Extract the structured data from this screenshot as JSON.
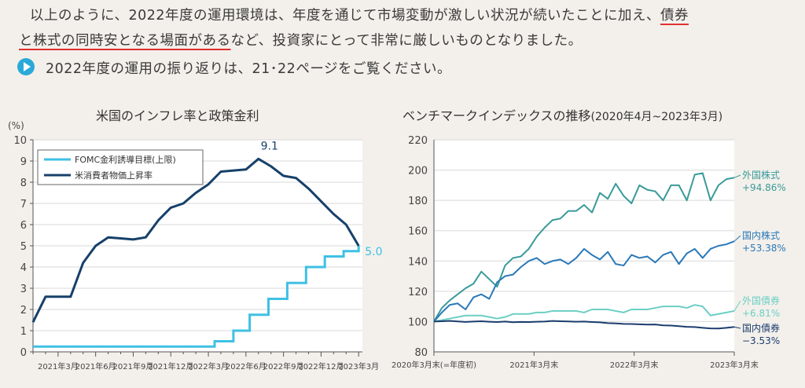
{
  "text": {
    "line1_a": "以上のように、2022年度の運用環境は、年度を通じて市場変動が激しい状況が続いたことに加え、",
    "line1_b": "債券",
    "line2_a": "と株式の同時安となる場面がある",
    "line2_b": "など、投資家にとって非常に厳しいものとなりました。",
    "note": "2022年度の運用の振り返りは、21･22ページをご覧ください。"
  },
  "colors": {
    "ffr": "#3fc0e4",
    "cpi": "#17406a",
    "foreign_stock": "#3a9a9a",
    "domestic_stock": "#2a78b8",
    "foreign_bond": "#6ccfc4",
    "domestic_bond": "#1c3d6e",
    "accent_red": "#e03030"
  },
  "chart_data": [
    {
      "type": "line",
      "title": "米国のインフレ率と政策金利",
      "ylabel": "(%)",
      "ylim": [
        0,
        10
      ],
      "yticks": [
        "0",
        "1",
        "2",
        "3",
        "4",
        "5",
        "6",
        "7",
        "8",
        "9",
        "10"
      ],
      "xticks": [
        {
          "label": "2021年3月",
          "x": 2.0
        },
        {
          "label": "2021年6月",
          "x": 5.0
        },
        {
          "label": "2021年9月",
          "x": 8.0
        },
        {
          "label": "2021年12月",
          "x": 11.0
        },
        {
          "label": "2022年3月",
          "x": 14.0
        },
        {
          "label": "2022年6月",
          "x": 17.0
        },
        {
          "label": "2022年9月",
          "x": 20.0
        },
        {
          "label": "2022年12月",
          "x": 23.0
        },
        {
          "label": "2023年3月",
          "x": 26.0
        }
      ],
      "xlim": [
        0,
        26.3
      ],
      "legend": [
        "FOMC金利誘導目標(上限)",
        "米消費者物価上昇率"
      ],
      "annotations": [
        {
          "text": "9.1"
        },
        {
          "text": "5.0"
        }
      ],
      "series": [
        {
          "name": "FOMC金利誘導目標(上限)",
          "step": true,
          "x": [
            0,
            14.5,
            14.5,
            16.0,
            16.0,
            17.3,
            17.3,
            18.8,
            18.8,
            20.3,
            20.3,
            21.8,
            21.8,
            23.3,
            23.3,
            24.8,
            24.8,
            26.0,
            26.0
          ],
          "y": [
            0.25,
            0.25,
            0.5,
            0.5,
            1.0,
            1.0,
            1.75,
            1.75,
            2.5,
            2.5,
            3.25,
            3.25,
            4.0,
            4.0,
            4.5,
            4.5,
            4.75,
            4.75,
            5.0
          ]
        },
        {
          "name": "米消費者物価上昇率",
          "step": false,
          "x": [
            0,
            1,
            2,
            3,
            4,
            5,
            6,
            7,
            8,
            9,
            10,
            11,
            12,
            13,
            14,
            15,
            16,
            17,
            18,
            19,
            20,
            21,
            22,
            23,
            24,
            25,
            26
          ],
          "y": [
            1.4,
            2.6,
            2.6,
            2.6,
            4.2,
            5.0,
            5.4,
            5.35,
            5.3,
            5.4,
            6.2,
            6.8,
            7.0,
            7.5,
            7.9,
            8.5,
            8.55,
            8.6,
            9.1,
            8.75,
            8.3,
            8.2,
            7.7,
            7.1,
            6.5,
            6.0,
            5.0
          ]
        }
      ]
    },
    {
      "type": "line",
      "title": "ベンチマークインデックスの推移",
      "subtitle": "(2020年4月~2023年3月)",
      "ylim": [
        80,
        220
      ],
      "yticks": [
        "80",
        "100",
        "120",
        "140",
        "160",
        "180",
        "200",
        "220"
      ],
      "xlim": [
        0,
        36
      ],
      "xticks": [
        {
          "label": "2020年3月末(=年度初)",
          "x": 0
        },
        {
          "label": "2021年3月末",
          "x": 12
        },
        {
          "label": "2022年3月末",
          "x": 24
        },
        {
          "label": "2023年3月末",
          "x": 36
        }
      ],
      "series": [
        {
          "name": "外国株式",
          "label_line1": "外国株式",
          "label_line2": "+94.86%",
          "values": [
            100,
            109,
            114,
            118,
            122,
            125,
            133,
            128,
            123,
            137,
            142,
            143,
            148,
            156,
            162,
            167,
            168,
            173,
            173,
            177,
            172,
            185,
            181,
            191,
            183,
            178,
            190,
            187,
            186,
            180,
            190,
            190,
            180,
            197,
            198,
            180,
            190,
            194,
            195
          ]
        },
        {
          "name": "国内株式",
          "label_line1": "国内株式",
          "label_line2": "+53.38%",
          "values": [
            100,
            106,
            111,
            112,
            108,
            116,
            118,
            115,
            126,
            130,
            131,
            136,
            140,
            142,
            138,
            140,
            141,
            138,
            142,
            148,
            144,
            141,
            146,
            138,
            137,
            144,
            142,
            143,
            139,
            144,
            146,
            138,
            145,
            148,
            142,
            148,
            150,
            151,
            153
          ]
        },
        {
          "name": "外国債券",
          "label_line1": "外国債券",
          "label_line2": "+6.81%",
          "values": [
            100,
            101,
            102,
            103,
            104,
            104,
            104,
            103,
            102,
            103,
            105,
            105,
            105,
            106,
            106,
            107,
            107,
            107,
            107,
            106,
            108,
            108,
            108,
            107,
            106,
            108,
            108,
            108,
            109,
            110,
            110,
            110,
            109,
            111,
            110,
            104,
            105,
            106,
            107
          ]
        },
        {
          "name": "国内債券",
          "label_line1": "国内債券",
          "label_line2": "−3.53%",
          "values": [
            100,
            100.2,
            100.5,
            100.1,
            99.8,
            100.0,
            100.2,
            99.9,
            99.7,
            100.0,
            99.6,
            99.8,
            99.7,
            99.9,
            100.0,
            100.4,
            100.2,
            100.1,
            99.9,
            100.0,
            99.7,
            99.5,
            99.0,
            98.8,
            98.5,
            98.4,
            98.2,
            98.0,
            98.1,
            97.5,
            97.4,
            97.0,
            96.5,
            96.4,
            95.9,
            95.5,
            95.4,
            95.9,
            96.47
          ]
        }
      ]
    }
  ]
}
